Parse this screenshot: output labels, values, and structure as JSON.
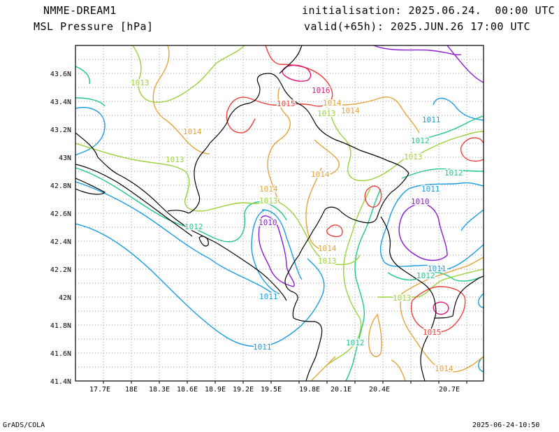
{
  "header": {
    "model": "NMME-DREAM1",
    "variable": "MSL Pressure [hPa]",
    "initialisation": "initialisation: 2025.06.24.  00:00 UTC",
    "valid": "valid(+65h): 2025.JUN.26 17:00 UTC"
  },
  "footer": {
    "left": "GrADS/COLA",
    "right": "2025-06-24-10:50"
  },
  "axes": {
    "lon_labels": [
      "17.7E",
      "18E",
      "18.3E",
      "18.6E",
      "18.9E",
      "19.2E",
      "19.5E",
      "19.8E",
      "20.1E",
      "20.4E",
      "20.7E"
    ],
    "lat_labels": [
      "43.6N",
      "43.4N",
      "43.2N",
      "43N",
      "42.8N",
      "42.6N",
      "42.4N",
      "42.2N",
      "42N",
      "41.8N",
      "41.6N",
      "41.4N"
    ]
  },
  "legend_colors": {
    "1010": "#8a1bd2",
    "1011": "#1a9de0",
    "1012": "#1fc88a",
    "1013": "#9ad23c",
    "1014": "#e2a43a",
    "1015": "#e8413a",
    "1016": "#e0107a",
    "border": "#000000",
    "grid": "#9a9a9a"
  },
  "contour_labels": [
    {
      "text": "1013",
      "level": "1013"
    },
    {
      "text": "1016",
      "level": "1016"
    },
    {
      "text": "1015",
      "level": "1015"
    },
    {
      "text": "1014",
      "level": "1014"
    },
    {
      "text": "1013",
      "level": "1013"
    },
    {
      "text": "1014",
      "level": "1014"
    },
    {
      "text": "1011",
      "level": "1011"
    },
    {
      "text": "1014",
      "level": "1014"
    },
    {
      "text": "1012",
      "level": "1012"
    },
    {
      "text": "1013",
      "level": "1013"
    },
    {
      "text": "1013",
      "level": "1013"
    },
    {
      "text": "1012",
      "level": "1012"
    },
    {
      "text": "1014",
      "level": "1014"
    },
    {
      "text": "1014",
      "level": "1014"
    },
    {
      "text": "1011",
      "level": "1011"
    },
    {
      "text": "1013",
      "level": "1013"
    },
    {
      "text": "1010",
      "level": "1010"
    },
    {
      "text": "1012",
      "level": "1012"
    },
    {
      "text": "1010",
      "level": "1010"
    },
    {
      "text": "1014",
      "level": "1014"
    },
    {
      "text": "1013",
      "level": "1013"
    },
    {
      "text": "1011",
      "level": "1011"
    },
    {
      "text": "1012",
      "level": "1012"
    },
    {
      "text": "1011",
      "level": "1011"
    },
    {
      "text": "1013",
      "level": "1013"
    },
    {
      "text": "1015",
      "level": "1015"
    },
    {
      "text": "1012",
      "level": "1012"
    },
    {
      "text": "1011",
      "level": "1011"
    },
    {
      "text": "1014",
      "level": "1014"
    }
  ]
}
